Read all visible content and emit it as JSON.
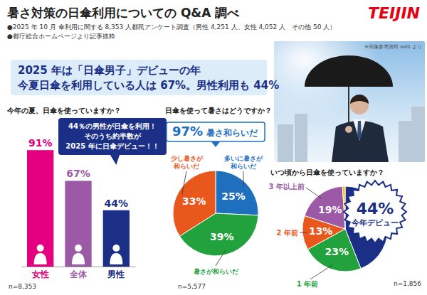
{
  "header": {
    "title": "暑さ対策の日傘利用についての Q&A 調べ",
    "logo": "TEIJIN",
    "notes": [
      "●2025 年 10 月 傘利用に関する 8,353 人都民アンケート調査（男性 4,251 人、女性 4,052 人　その他 50 人）",
      "●都庁総合ホームページより記事抜粋"
    ],
    "photo_credit": "※画像参考資料 web より"
  },
  "headline": [
    "2025 年は「日傘男子」デビューの年",
    "今夏日傘を利用している人は 67%。男性利用も 44%"
  ],
  "chart_data": [
    {
      "type": "bar",
      "title": "今年の夏、日傘を使っていますか？",
      "categories": [
        "女性",
        "全体",
        "男性"
      ],
      "values": [
        91,
        67,
        44
      ],
      "value_labels": [
        "91%",
        "67%",
        "44%"
      ],
      "colors": [
        "#e4007f",
        "#9b59a6",
        "#1b2f87"
      ],
      "ylim": [
        0,
        100
      ],
      "data_labels": true,
      "tick_labels": "x",
      "annotations": [
        "n=8,353"
      ],
      "callout": [
        "44％の男性が日傘を利用！",
        "そのうち約半数が",
        "2025 年に日傘デビュー！！"
      ]
    },
    {
      "type": "pie",
      "title": "日傘を使って暑さはどうですか？",
      "summary": [
        "97%",
        "暑さ和らいだ"
      ],
      "categories": [
        "多いに暑さが和らいだ",
        "暑さが和らいだ",
        "少し暑さが和らいだ"
      ],
      "values": [
        25,
        39,
        33
      ],
      "value_labels": [
        "25%",
        "39%",
        "33%"
      ],
      "colors": [
        "#1f6fbf",
        "#22a23c",
        "#e8581c"
      ],
      "data_labels": true,
      "annotations": [
        "n=5,577"
      ]
    },
    {
      "type": "pie",
      "title": "いつ頃から日傘を使っていますか？",
      "categories": [
        "今年デビュー",
        "1 年前",
        "2 年前",
        "3 年以上前",
        null
      ],
      "values": [
        44,
        23,
        13,
        19,
        1
      ],
      "value_labels": [
        "44%",
        "23%",
        "13%",
        "19%",
        null
      ],
      "colors": [
        "#1b2f87",
        "#22a23c",
        "#e8581c",
        "#9b59a6",
        "#f2c400"
      ],
      "data_labels": true,
      "annotations": [
        "n=1,856"
      ]
    }
  ]
}
